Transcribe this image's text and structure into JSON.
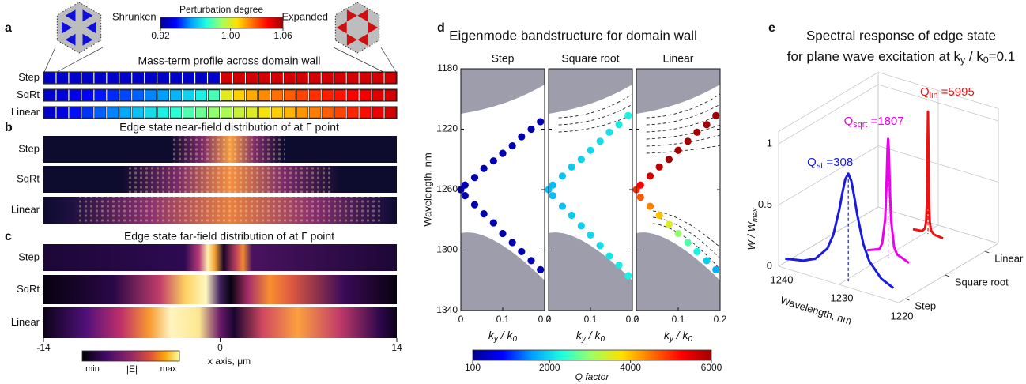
{
  "colormap": [
    "#000090",
    "#0000ff",
    "#00a0ff",
    "#20ffdf",
    "#a0ff60",
    "#ffe000",
    "#ff7000",
    "#ff0000",
    "#a00000"
  ],
  "a": {
    "label": "a",
    "title": "Mass-term profile across domain wall",
    "hex_labels": [
      "Shrunken",
      "Expanded"
    ],
    "colorbar": {
      "title": "Perturbation degree",
      "lim": [
        0.92,
        1.06
      ],
      "ticks": [
        0.92,
        {
          "value": 1,
          "label": "1.00"
        },
        1.06
      ]
    },
    "rows": [
      {
        "name": "Step",
        "values": [
          0.93,
          0.93,
          0.93,
          0.93,
          0.93,
          0.93,
          0.93,
          0.93,
          0.93,
          0.93,
          0.93,
          0.93,
          0.93,
          0.93,
          1.05,
          1.05,
          1.05,
          1.05,
          1.05,
          1.05,
          1.05,
          1.05,
          1.05,
          1.05,
          1.05,
          1.05,
          1.05,
          1.05
        ]
      },
      {
        "name": "SqRt",
        "values": [
          0.93,
          0.932,
          0.935,
          0.937,
          0.94,
          0.942,
          0.945,
          0.948,
          0.952,
          0.955,
          0.959,
          0.964,
          0.97,
          0.978,
          1.002,
          1.01,
          1.016,
          1.021,
          1.025,
          1.028,
          1.032,
          1.035,
          1.038,
          1.04,
          1.043,
          1.045,
          1.048,
          1.05
        ]
      },
      {
        "name": "Linear",
        "values": [
          0.93,
          0.934,
          0.939,
          0.943,
          0.948,
          0.952,
          0.957,
          0.961,
          0.966,
          0.97,
          0.974,
          0.979,
          0.983,
          0.988,
          0.992,
          0.997,
          1.001,
          1.006,
          1.01,
          1.014,
          1.019,
          1.023,
          1.028,
          1.032,
          1.037,
          1.041,
          1.046,
          1.05
        ]
      }
    ]
  },
  "b": {
    "label": "b",
    "title": "Edge state near-field distribution of at Γ point",
    "rows": [
      "Step",
      "SqRt",
      "Linear"
    ]
  },
  "c": {
    "label": "c",
    "title": "Edge state far-field distribution of at Γ point",
    "rows": [
      "Step",
      "SqRt",
      "Linear"
    ],
    "xlim": [
      -14,
      14
    ],
    "xticks": [
      -14,
      0,
      14
    ],
    "xlabel": "x axis, μm",
    "colorbar": {
      "title": "|E|",
      "ticks": [
        "min",
        "max"
      ]
    }
  },
  "d": {
    "label": "d",
    "title": "Eigenmode bandstructure for domain wall",
    "ylabel": "Wavelength, nm",
    "ylim": [
      1180,
      1340
    ],
    "yticks": [
      1180,
      1220,
      1260,
      1300,
      1340
    ],
    "xlim": [
      0,
      0.2
    ],
    "xticks": [
      0,
      0.1,
      0.2
    ],
    "xlabel": [
      "k",
      "y",
      " / k",
      "0"
    ],
    "colorbar": {
      "title": "Q factor",
      "lim": [
        100,
        6000
      ],
      "ticks": [
        100,
        2000,
        4000,
        6000
      ]
    },
    "subplots": [
      {
        "title": "Step",
        "k": [
          0,
          0.01,
          0.033,
          0.055,
          0.078,
          0.1,
          0.123,
          0.145,
          0.168,
          0.19,
          0.01,
          0.033,
          0.055,
          0.078,
          0.1,
          0.123,
          0.145,
          0.168,
          0.19
        ],
        "wavelength": [
          1260,
          1257,
          1252,
          1246,
          1241,
          1236,
          1231,
          1225,
          1220,
          1215,
          1264,
          1270,
          1276,
          1282,
          1289,
          1295,
          1301,
          1307,
          1313
        ],
        "Q": [
          308,
          300,
          300,
          300,
          300,
          300,
          300,
          300,
          300,
          300,
          300,
          300,
          300,
          300,
          300,
          300,
          300,
          300,
          300
        ]
      },
      {
        "title": "Square root",
        "k": [
          0,
          0.01,
          0.033,
          0.055,
          0.078,
          0.1,
          0.123,
          0.145,
          0.168,
          0.19,
          0.01,
          0.033,
          0.055,
          0.078,
          0.1,
          0.123,
          0.145,
          0.168,
          0.19
        ],
        "wavelength": [
          1260,
          1257,
          1251,
          1245,
          1240,
          1234,
          1228,
          1222,
          1217,
          1211,
          1264,
          1271,
          1277,
          1284,
          1290,
          1297,
          1304,
          1310,
          1317
        ],
        "Q": [
          1807,
          1800,
          1850,
          1900,
          1950,
          2000,
          2050,
          2100,
          2150,
          2200,
          1800,
          1850,
          1900,
          1950,
          2000,
          2050,
          2100,
          2150,
          2200
        ]
      },
      {
        "title": "Linear",
        "k": [
          0,
          0.01,
          0.033,
          0.055,
          0.078,
          0.1,
          0.123,
          0.145,
          0.168,
          0.19,
          0.01,
          0.033,
          0.055,
          0.078,
          0.1,
          0.123,
          0.145,
          0.168,
          0.19
        ],
        "wavelength": [
          1260,
          1257,
          1251,
          1245,
          1240,
          1234,
          1228,
          1222,
          1217,
          1211,
          1265,
          1271,
          1277,
          1283,
          1289,
          1295,
          1301,
          1307,
          1313
        ],
        "Q": [
          5000,
          5300,
          5600,
          5800,
          6000,
          6000,
          6000,
          6000,
          6000,
          6000,
          4700,
          4400,
          4000,
          3500,
          3000,
          2600,
          2200,
          1900,
          1700
        ]
      }
    ]
  },
  "e": {
    "label": "e",
    "title": "Spectral response of edge state",
    "subtitle": [
      "for plane wave excitation at k",
      "y",
      " / k",
      "0",
      "=0.1"
    ],
    "ylabel": [
      "W / W",
      "max"
    ],
    "ylim": [
      0,
      1.1
    ],
    "yticks": [
      0,
      0.5,
      1
    ],
    "xlabel": "Wavelength, nm",
    "xlim": [
      1240,
      1220
    ],
    "xticks": [
      1240,
      1230,
      1220
    ],
    "series": [
      {
        "name": "Step",
        "color": "#1a1ae0",
        "annotation": [
          "Q",
          "st",
          " =308"
        ],
        "x": [
          1240,
          1237,
          1235,
          1233,
          1232,
          1231,
          1230.5,
          1230,
          1229.5,
          1229,
          1228.5,
          1228,
          1227,
          1226,
          1224,
          1222
        ],
        "values": [
          0.03,
          0.058,
          0.103,
          0.216,
          0.343,
          0.563,
          0.704,
          0.828,
          0.88,
          0.828,
          0.704,
          0.563,
          0.343,
          0.216,
          0.103,
          0.058
        ]
      },
      {
        "name": "Square root",
        "color": "#ee00ee",
        "annotation": [
          "Q",
          "sqrt",
          " =1807"
        ],
        "x": [
          1233,
          1231,
          1230.5,
          1230,
          1229.8,
          1229.6,
          1229.5,
          1229.4,
          1229.2,
          1229,
          1228.5,
          1228,
          1226
        ],
        "values": [
          0.009,
          0.048,
          0.1,
          0.307,
          0.543,
          0.892,
          0.97,
          0.892,
          0.543,
          0.307,
          0.1,
          0.048,
          0.009
        ]
      },
      {
        "name": "Linear",
        "color": "#ee1111",
        "annotation": [
          "Q",
          "lin",
          " =5995"
        ],
        "x": [
          1232,
          1230.5,
          1230,
          1229.8,
          1229.65,
          1229.55,
          1229.5,
          1229.45,
          1229.35,
          1229.2,
          1229,
          1228.5,
          1227
        ],
        "values": [
          0.002,
          0.01,
          0.038,
          0.1,
          0.308,
          0.8,
          1,
          0.8,
          0.308,
          0.1,
          0.038,
          0.01,
          0.002
        ]
      }
    ]
  }
}
